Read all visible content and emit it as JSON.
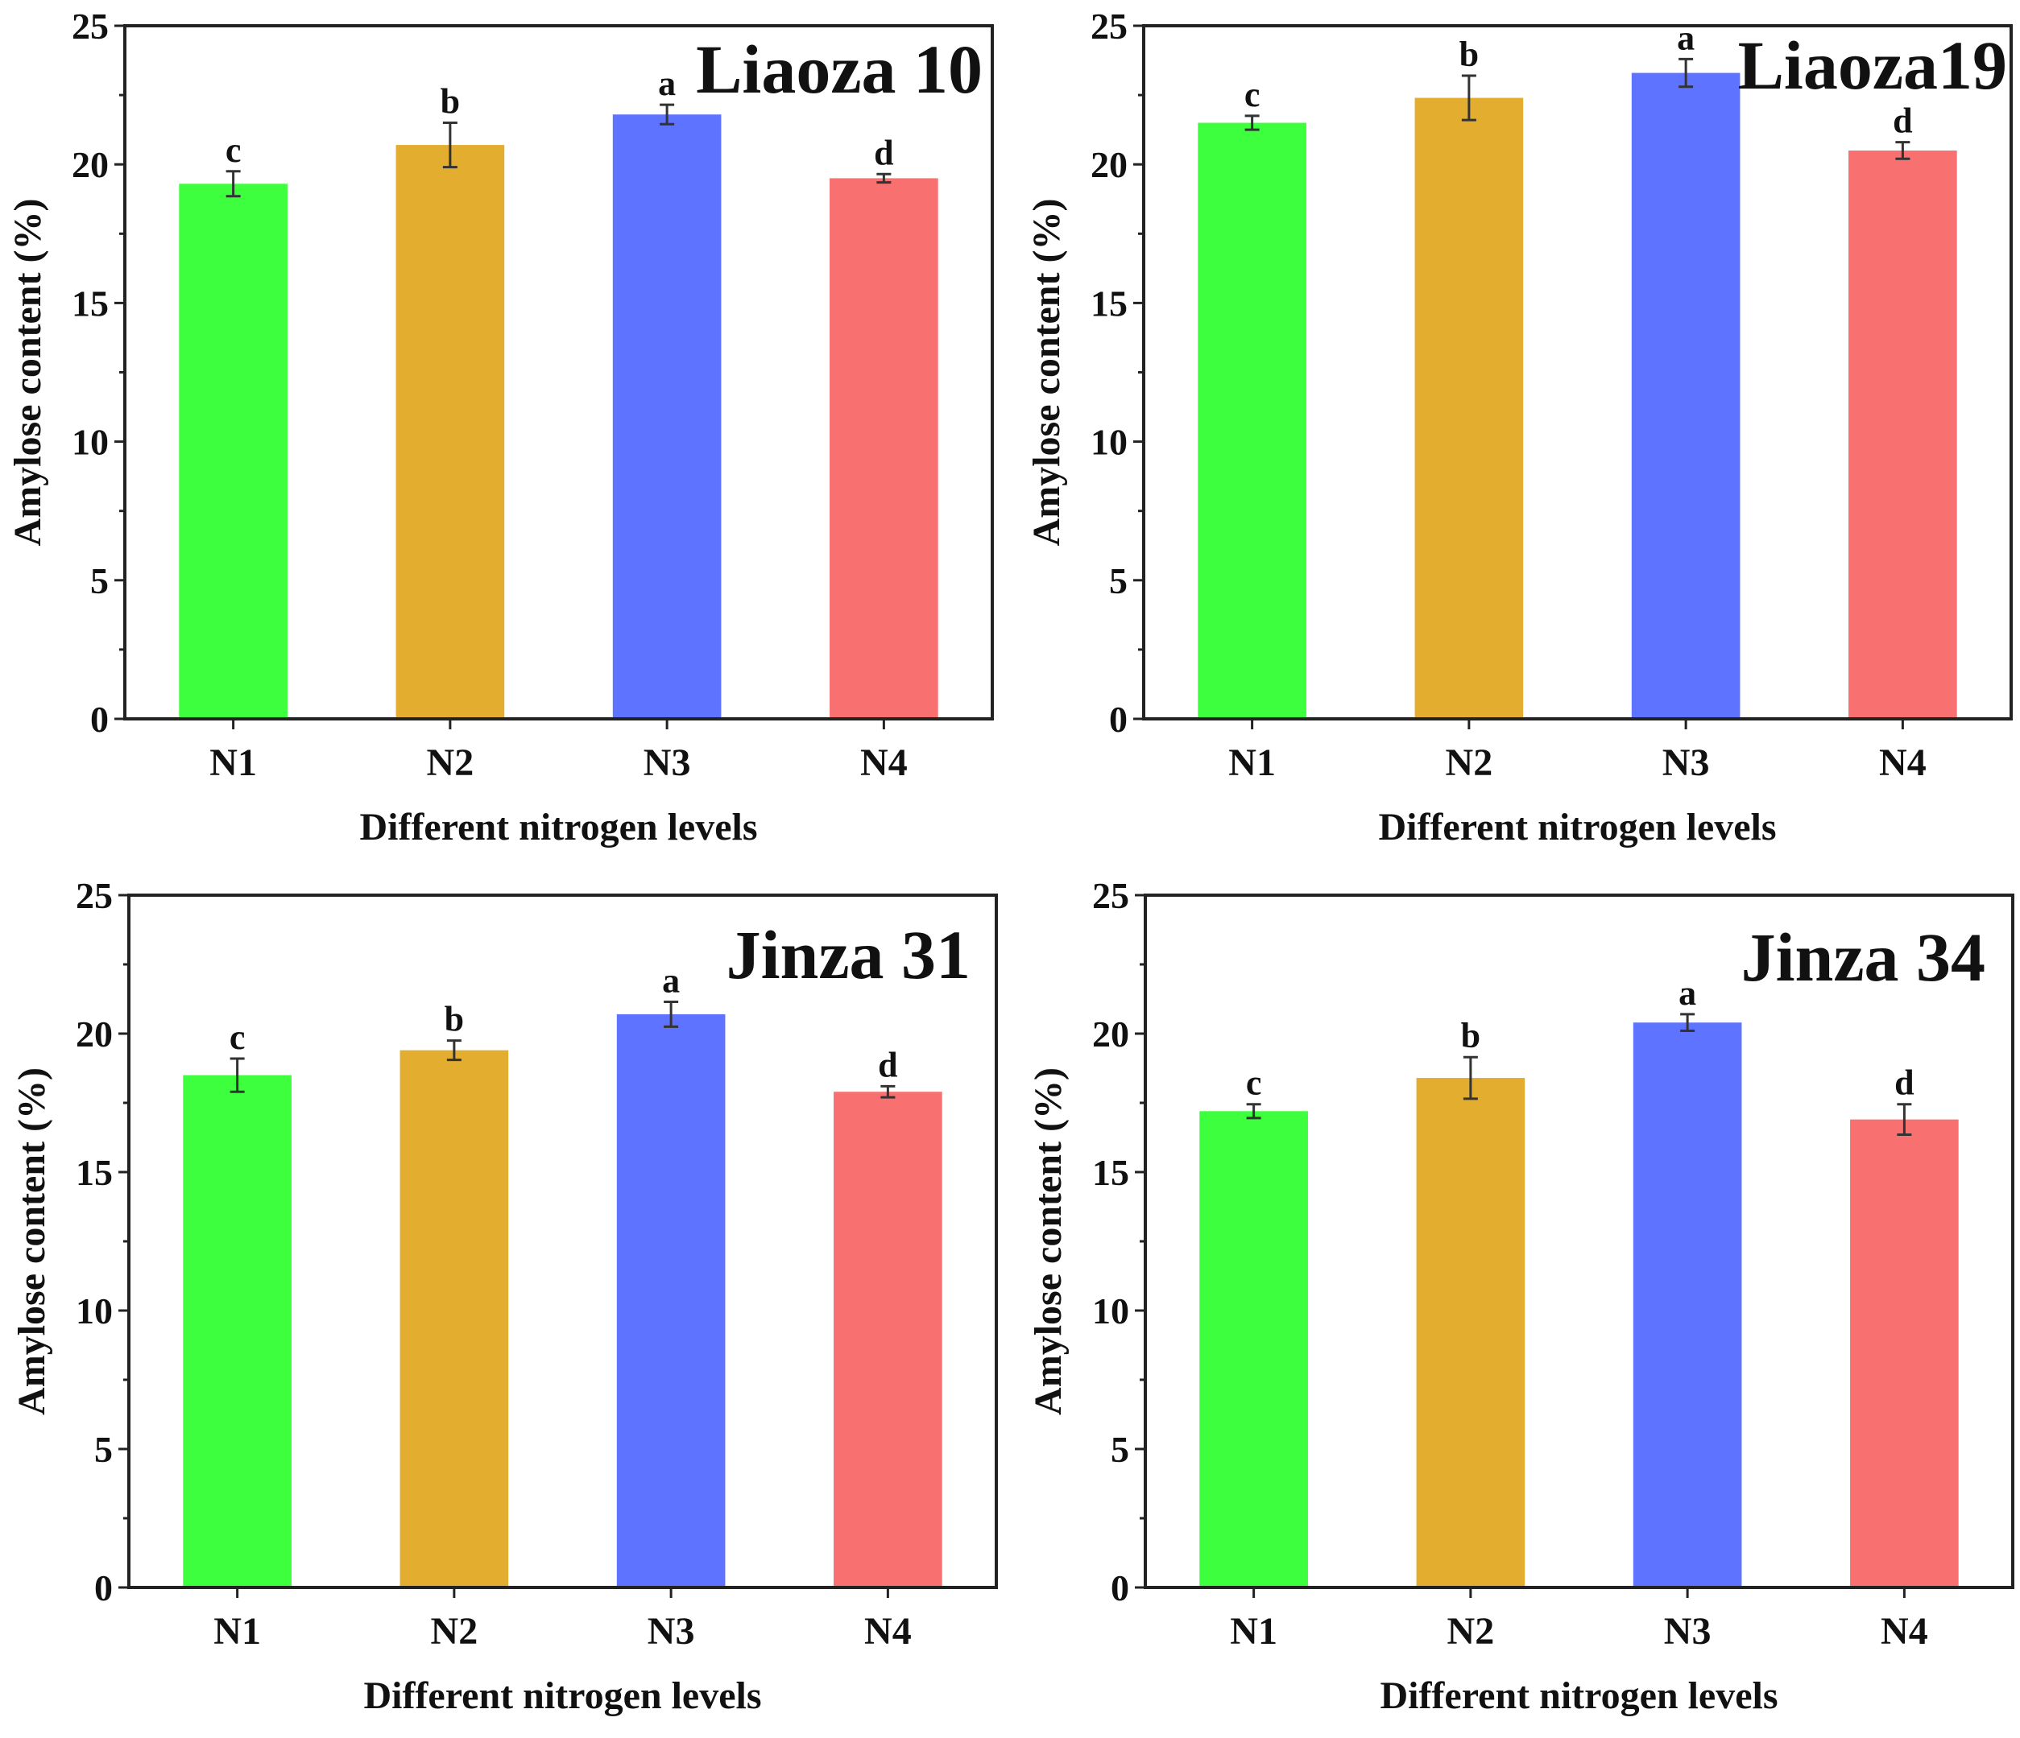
{
  "chart_data": [
    {
      "type": "bar",
      "title": "Liaoza 10",
      "xlabel": "Different nitrogen levels",
      "ylabel": "Amylose content (%)",
      "ylim": [
        0,
        25
      ],
      "yticks": [
        "0",
        "5",
        "10",
        "15",
        "20",
        "25"
      ],
      "categories": [
        "N1",
        "N2",
        "N3",
        "N4"
      ],
      "values": [
        19.3,
        20.7,
        21.8,
        19.5
      ],
      "errors": [
        0.45,
        0.8,
        0.35,
        0.15
      ],
      "letters": [
        "c",
        "b",
        "a",
        "d"
      ],
      "colors": [
        "#3dff3d",
        "#e3ad2f",
        "#5e73ff",
        "#f87070"
      ]
    },
    {
      "type": "bar",
      "title": "Liaoza19",
      "xlabel": "Different nitrogen levels",
      "ylabel": "Amylose content (%)",
      "ylim": [
        0,
        25
      ],
      "yticks": [
        "0",
        "5",
        "10",
        "15",
        "20",
        "25"
      ],
      "categories": [
        "N1",
        "N2",
        "N3",
        "N4"
      ],
      "values": [
        21.5,
        22.4,
        23.3,
        20.5
      ],
      "errors": [
        0.25,
        0.8,
        0.5,
        0.3
      ],
      "letters": [
        "c",
        "b",
        "a",
        "d"
      ],
      "colors": [
        "#3dff3d",
        "#e3ad2f",
        "#5e73ff",
        "#f87070"
      ]
    },
    {
      "type": "bar",
      "title": "Jinza 31",
      "xlabel": "Different nitrogen levels",
      "ylabel": "Amylose content (%)",
      "ylim": [
        0,
        25
      ],
      "yticks": [
        "0",
        "5",
        "10",
        "15",
        "20",
        "25"
      ],
      "categories": [
        "N1",
        "N2",
        "N3",
        "N4"
      ],
      "values": [
        18.5,
        19.4,
        20.7,
        17.9
      ],
      "errors": [
        0.6,
        0.35,
        0.45,
        0.2
      ],
      "letters": [
        "c",
        "b",
        "a",
        "d"
      ],
      "colors": [
        "#3dff3d",
        "#e3ad2f",
        "#5e73ff",
        "#f87070"
      ]
    },
    {
      "type": "bar",
      "title": "Jinza 34",
      "xlabel": "Different nitrogen levels",
      "ylabel": "Amylose content (%)",
      "ylim": [
        0,
        25
      ],
      "yticks": [
        "0",
        "5",
        "10",
        "15",
        "20",
        "25"
      ],
      "categories": [
        "N1",
        "N2",
        "N3",
        "N4"
      ],
      "values": [
        17.2,
        18.4,
        20.4,
        16.9
      ],
      "errors": [
        0.25,
        0.75,
        0.3,
        0.55
      ],
      "letters": [
        "c",
        "b",
        "a",
        "d"
      ],
      "colors": [
        "#3dff3d",
        "#e3ad2f",
        "#5e73ff",
        "#f87070"
      ]
    }
  ]
}
